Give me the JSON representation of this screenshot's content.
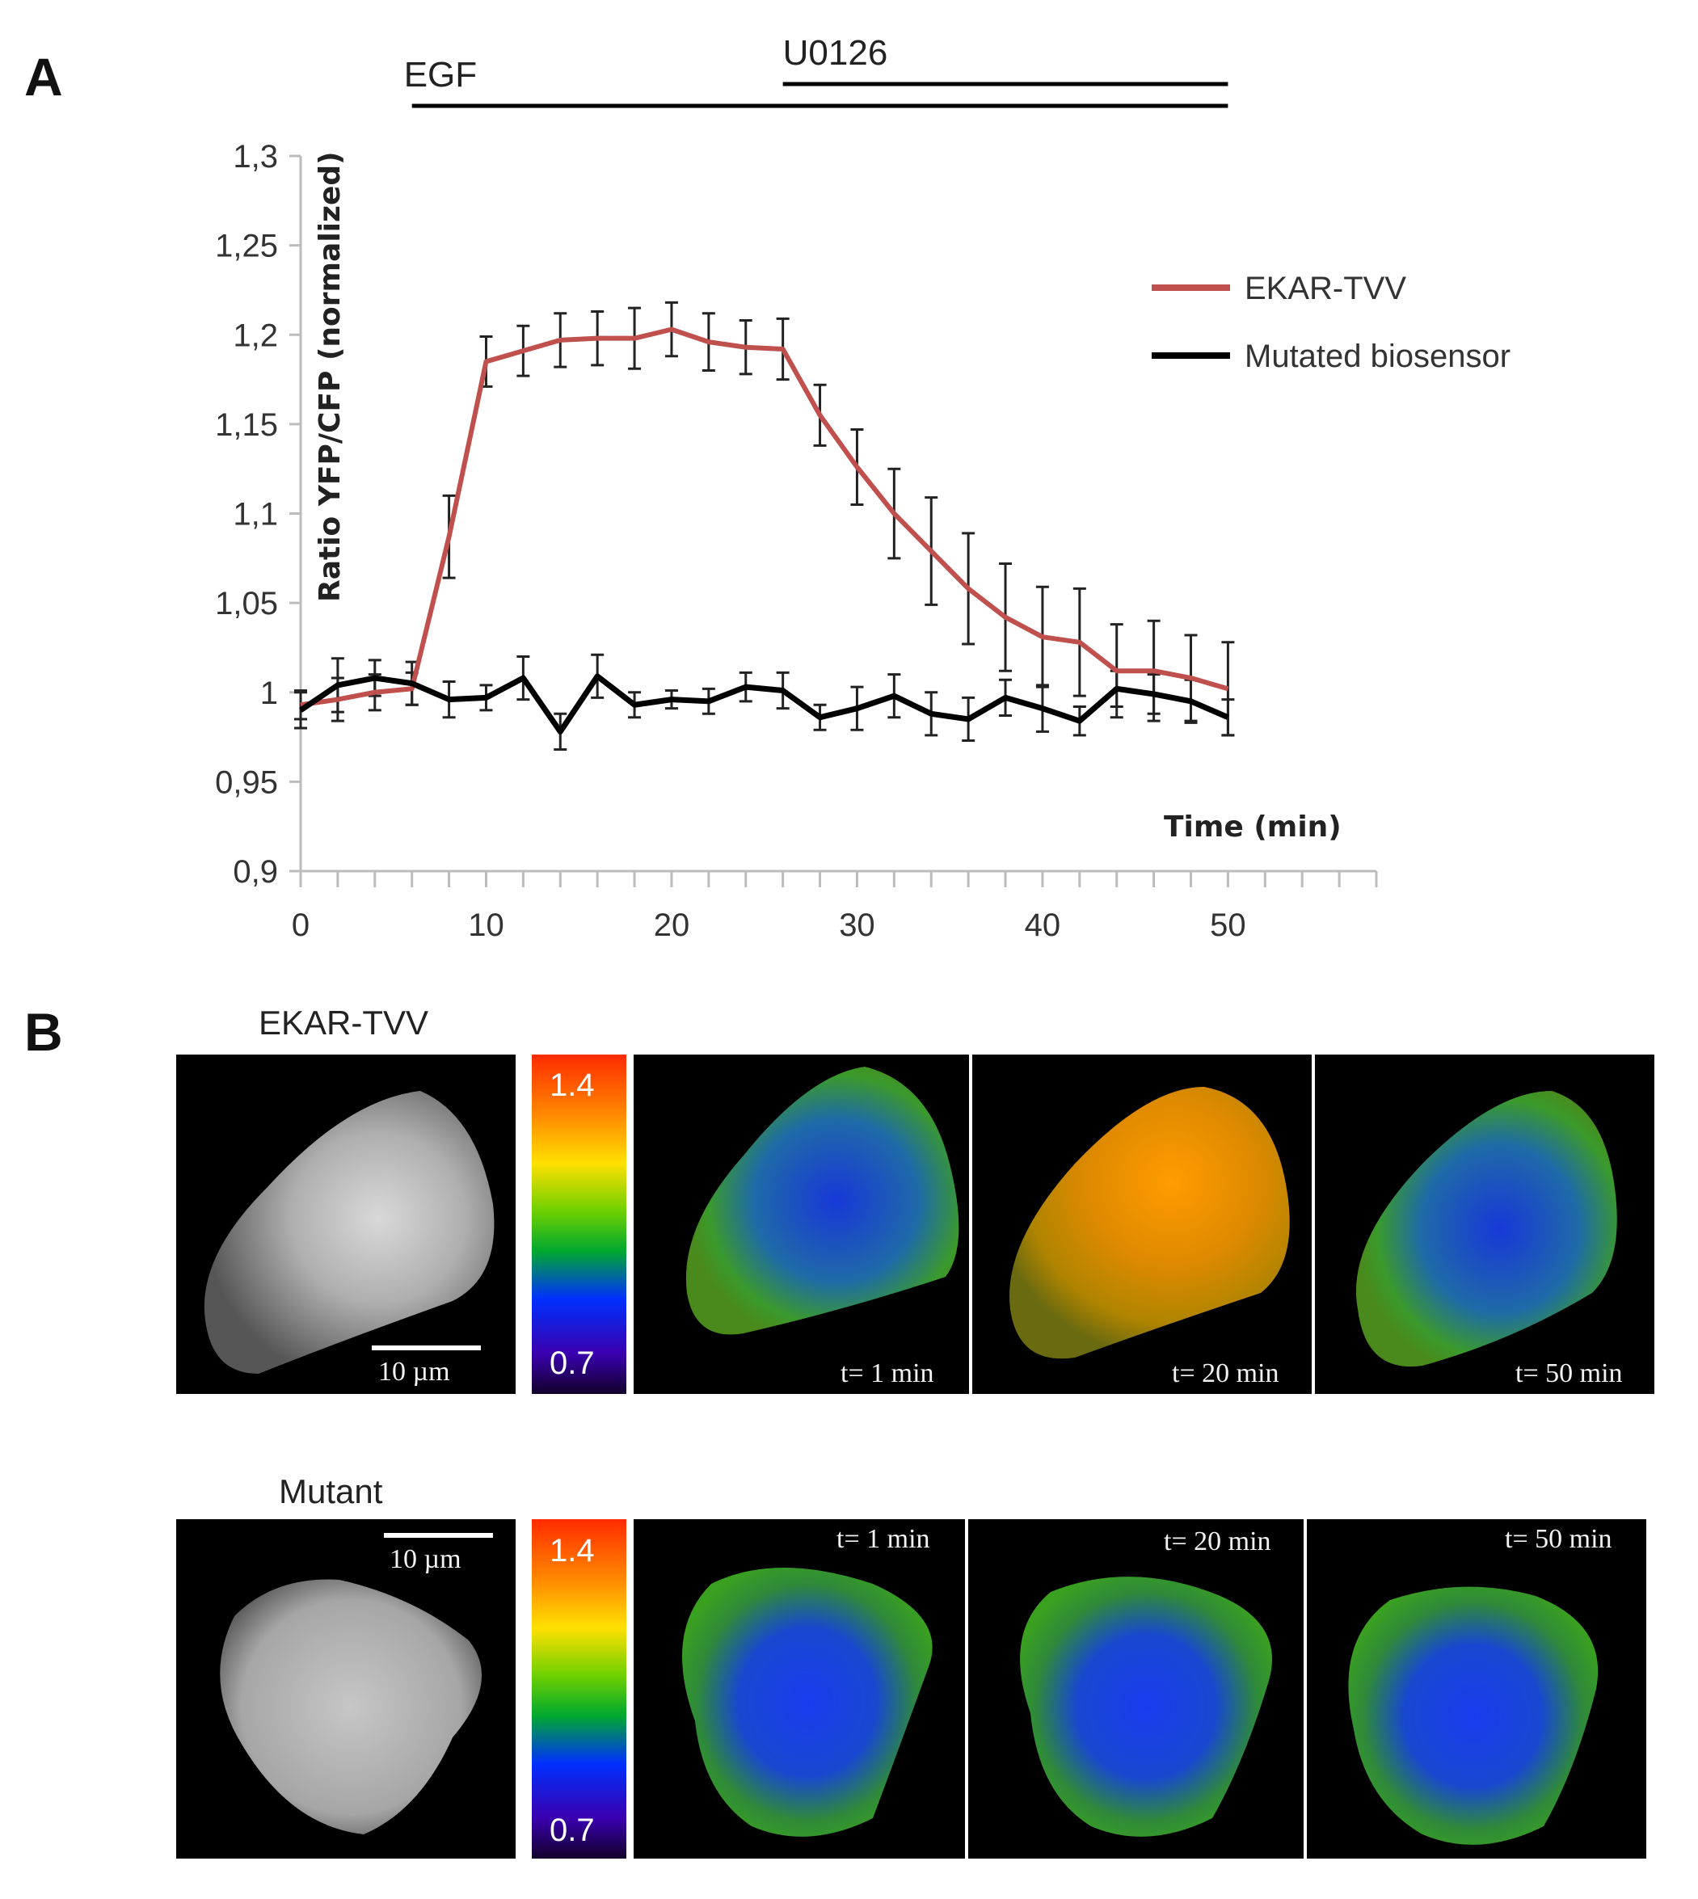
{
  "panels": {
    "a": "A",
    "b": "B"
  },
  "chart_data": {
    "type": "line",
    "xlabel": "Time (min)",
    "ylabel": "Ratio YFP/CFP (normalized)",
    "xlim": [
      0,
      58
    ],
    "ylim": [
      0.9,
      1.3
    ],
    "x_ticks": [
      "0",
      "10",
      "20",
      "30",
      "40",
      "50"
    ],
    "y_ticks": [
      "0,9",
      "0,95",
      "1",
      "1,05",
      "1,1",
      "1,15",
      "1,2",
      "1,25",
      "1,3"
    ],
    "legend_position": "top-right",
    "treatments": [
      {
        "label": "EGF",
        "start": 6,
        "end": 50
      },
      {
        "label": "U0126",
        "start": 26,
        "end": 50
      }
    ],
    "x": [
      0,
      2,
      4,
      6,
      8,
      10,
      12,
      14,
      16,
      18,
      20,
      22,
      24,
      26,
      28,
      30,
      32,
      34,
      36,
      38,
      40,
      42,
      44,
      46,
      48,
      50
    ],
    "series": [
      {
        "name": "EKAR-TVV",
        "color": "#c0504d",
        "values": [
          0.993,
          0.996,
          1.0,
          1.002,
          1.087,
          1.185,
          1.191,
          1.197,
          1.198,
          1.198,
          1.203,
          1.196,
          1.193,
          1.192,
          1.155,
          1.126,
          1.1,
          1.079,
          1.058,
          1.042,
          1.031,
          1.028,
          1.012,
          1.012,
          1.008,
          1.002
        ],
        "errors": [
          0.008,
          0.012,
          0.01,
          0.009,
          0.023,
          0.014,
          0.014,
          0.015,
          0.015,
          0.017,
          0.015,
          0.016,
          0.015,
          0.017,
          0.017,
          0.021,
          0.025,
          0.03,
          0.031,
          0.03,
          0.028,
          0.03,
          0.026,
          0.028,
          0.024,
          0.026
        ]
      },
      {
        "name": "Mutated biosensor",
        "color": "#000000",
        "values": [
          0.99,
          1.004,
          1.008,
          1.005,
          0.996,
          0.997,
          1.008,
          0.978,
          1.009,
          0.993,
          0.996,
          0.995,
          1.003,
          1.001,
          0.986,
          0.991,
          0.998,
          0.988,
          0.985,
          0.997,
          0.991,
          0.984,
          1.002,
          0.999,
          0.995,
          0.986
        ],
        "errors": [
          0.01,
          0.015,
          0.01,
          0.012,
          0.01,
          0.007,
          0.012,
          0.01,
          0.012,
          0.007,
          0.005,
          0.007,
          0.008,
          0.01,
          0.007,
          0.012,
          0.012,
          0.012,
          0.012,
          0.01,
          0.013,
          0.008,
          0.01,
          0.011,
          0.012,
          0.01
        ]
      }
    ]
  },
  "panel_b": {
    "colorbar": {
      "max": "1.4",
      "min": "0.7"
    },
    "scale_bar": "10 µm",
    "rows": [
      {
        "title": "EKAR-TVV",
        "times": [
          "t= 1 min",
          "t= 20 min",
          "t= 50 min"
        ],
        "ratio_levels": [
          0.35,
          0.85,
          0.3
        ]
      },
      {
        "title": "Mutant",
        "times": [
          "t= 1 min",
          "t= 20 min",
          "t= 50 min"
        ],
        "ratio_levels": [
          0.28,
          0.28,
          0.28
        ]
      }
    ]
  }
}
